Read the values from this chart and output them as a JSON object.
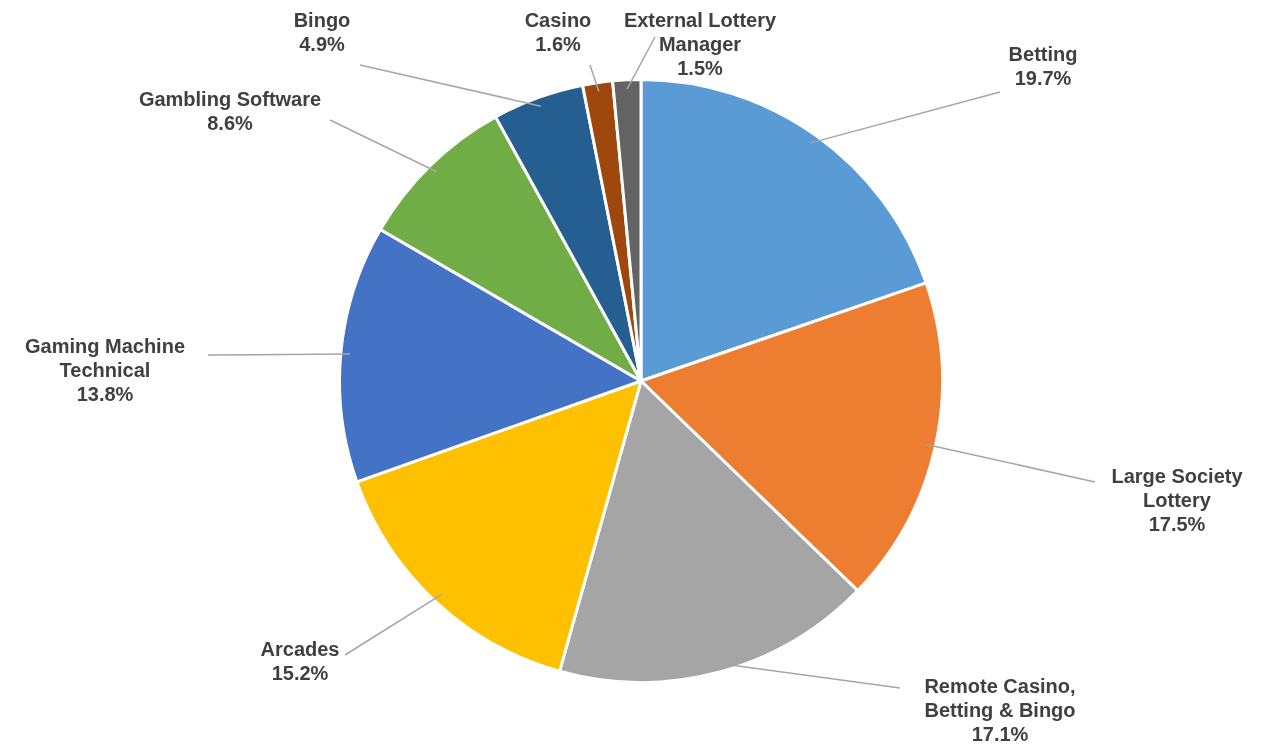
{
  "chart_data": {
    "type": "pie",
    "categories": [
      "Betting",
      "Large Society Lottery",
      "Remote Casino, Betting & Bingo",
      "Arcades",
      "Gaming Machine Technical",
      "Gambling Software",
      "Bingo",
      "Casino",
      "External Lottery Manager"
    ],
    "values": [
      19.7,
      17.5,
      17.1,
      15.2,
      13.8,
      8.6,
      4.9,
      1.6,
      1.5
    ],
    "value_labels": [
      "19.7%",
      "17.5%",
      "17.1%",
      "15.2%",
      "13.8%",
      "8.6%",
      "4.9%",
      "1.6%",
      "1.5%"
    ],
    "colors": [
      "#5b9bd5",
      "#ed7d31",
      "#a5a5a5",
      "#ffc000",
      "#4472c4",
      "#70ad47",
      "#255e91",
      "#9e480e",
      "#636363"
    ],
    "legend": false
  }
}
